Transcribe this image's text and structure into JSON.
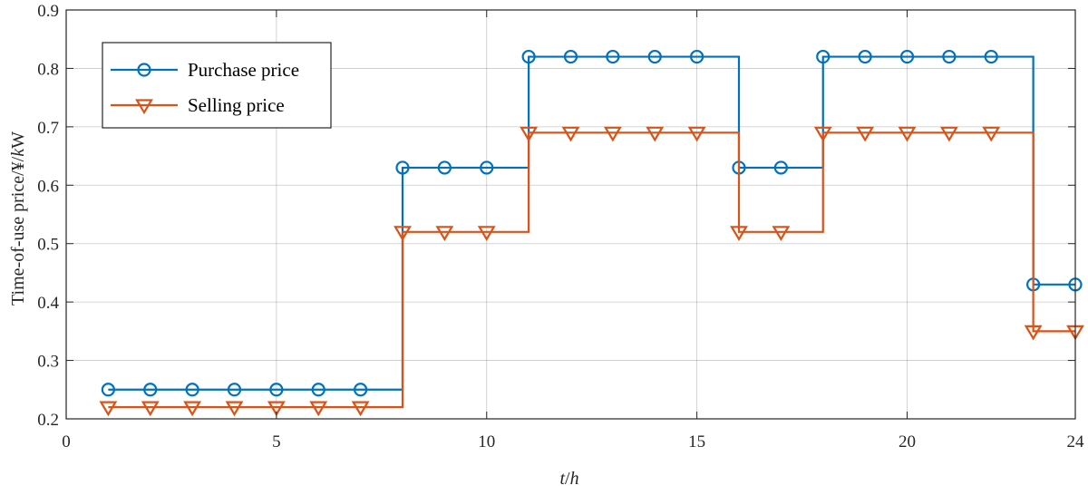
{
  "chart_data": {
    "type": "line",
    "step": true,
    "title": "",
    "xlabel": "t/h",
    "xlabel_italic": "t",
    "xlabel_sep": "/",
    "xlabel_unit": "h",
    "ylabel": "Time-of-use price/¥/kW",
    "ylabel_main": "Time-of-use price/¥/",
    "ylabel_italic": "k",
    "ylabel_tail": "W",
    "xlim": [
      0,
      24
    ],
    "ylim": [
      0.2,
      0.9
    ],
    "xticks": [
      0,
      5,
      10,
      15,
      20,
      24
    ],
    "yticks": [
      0.2,
      0.3,
      0.4,
      0.5,
      0.6,
      0.7,
      0.8,
      0.9
    ],
    "xtick_labels": [
      "0",
      "5",
      "10",
      "15",
      "20",
      "24"
    ],
    "ytick_labels": [
      "0.2",
      "0.3",
      "0.4",
      "0.5",
      "0.6",
      "0.7",
      "0.8",
      "0.9"
    ],
    "grid": true,
    "legend_position": "top-left",
    "x": [
      1,
      2,
      3,
      4,
      5,
      6,
      7,
      8,
      9,
      10,
      11,
      12,
      13,
      14,
      15,
      16,
      17,
      18,
      19,
      20,
      21,
      22,
      23,
      24
    ],
    "series": [
      {
        "name": "Purchase price",
        "color": "#0072BD",
        "marker": "circle",
        "values": [
          0.25,
          0.25,
          0.25,
          0.25,
          0.25,
          0.25,
          0.25,
          0.63,
          0.63,
          0.63,
          0.82,
          0.82,
          0.82,
          0.82,
          0.82,
          0.63,
          0.63,
          0.82,
          0.82,
          0.82,
          0.82,
          0.82,
          0.43,
          0.43
        ]
      },
      {
        "name": "Selling price",
        "color": "#D95319",
        "marker": "triangle-down",
        "values": [
          0.22,
          0.22,
          0.22,
          0.22,
          0.22,
          0.22,
          0.22,
          0.52,
          0.52,
          0.52,
          0.69,
          0.69,
          0.69,
          0.69,
          0.69,
          0.52,
          0.52,
          0.69,
          0.69,
          0.69,
          0.69,
          0.69,
          0.35,
          0.35
        ]
      }
    ]
  }
}
